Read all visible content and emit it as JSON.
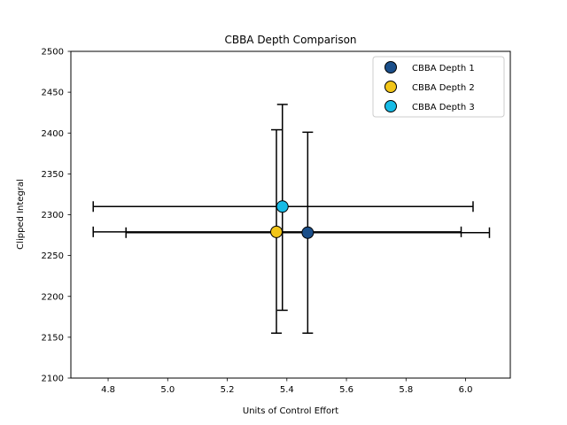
{
  "chart_data": {
    "type": "scatter",
    "title": "CBBA Depth Comparison",
    "xlabel": "Units of Control Effort",
    "ylabel": "Clipped Integral",
    "xlim": [
      4.675,
      6.15
    ],
    "ylim": [
      2100,
      2500
    ],
    "xticks": [
      "4.8",
      "5.0",
      "5.2",
      "5.4",
      "5.6",
      "5.8",
      "6.0"
    ],
    "yticks": [
      "2100",
      "2150",
      "2200",
      "2250",
      "2300",
      "2350",
      "2400",
      "2450",
      "2500"
    ],
    "legend_position": "top-right",
    "grid": false,
    "series": [
      {
        "name": "CBBA Depth 1",
        "color": "#1b4f8a",
        "x": 5.47,
        "y": 2278,
        "xerr": [
          4.86,
          6.08
        ],
        "yerr": [
          2155,
          2401
        ]
      },
      {
        "name": "CBBA Depth 2",
        "color": "#f2c518",
        "x": 5.365,
        "y": 2279,
        "xerr": [
          4.75,
          5.985
        ],
        "yerr": [
          2155,
          2404
        ]
      },
      {
        "name": "CBBA Depth 3",
        "color": "#17bbe6",
        "x": 5.385,
        "y": 2310,
        "xerr": [
          4.75,
          6.025
        ],
        "yerr": [
          2183,
          2435
        ]
      }
    ]
  }
}
